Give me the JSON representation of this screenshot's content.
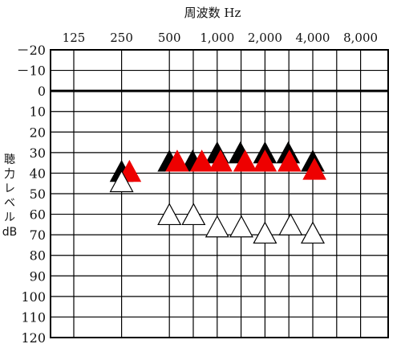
{
  "chart_data": {
    "type": "scatter",
    "title": "",
    "xlabel": "周波数 Hz",
    "ylabel": "聴力レベル dB",
    "ylabel_lines": [
      "聴",
      "力",
      "レ",
      "ベ",
      "ル",
      "dB"
    ],
    "x_ticks": [
      "125",
      "250",
      "500",
      "1,000",
      "2,000",
      "4,000",
      "8,000"
    ],
    "y_ticks": [
      "－20",
      "－10",
      "0",
      "10",
      "20",
      "30",
      "40",
      "50",
      "60",
      "70",
      "80",
      "90",
      "100",
      "110",
      "120"
    ],
    "y_values": [
      -20,
      -10,
      0,
      10,
      20,
      30,
      40,
      50,
      60,
      70,
      80,
      90,
      100,
      110,
      120
    ],
    "ylim": [
      -20,
      120
    ],
    "y_inverted": true,
    "x_scale": "log2 (octave)",
    "reference_line_db": 0,
    "grid": true,
    "legend": "none",
    "series": [
      {
        "marker": "triangle-filled",
        "color": "#000000",
        "points": [
          {
            "x": 250,
            "y": 40
          },
          {
            "x": 500,
            "y": 35
          },
          {
            "x": 700,
            "y": 35
          },
          {
            "x": 1000,
            "y": 31
          },
          {
            "x": 1400,
            "y": 31
          },
          {
            "x": 2000,
            "y": 31
          },
          {
            "x": 2800,
            "y": 31
          },
          {
            "x": 4000,
            "y": 35
          }
        ]
      },
      {
        "marker": "triangle-filled",
        "color": "#ee0000",
        "points": [
          {
            "x": 280,
            "y": 40
          },
          {
            "x": 560,
            "y": 35
          },
          {
            "x": 800,
            "y": 35
          },
          {
            "x": 1050,
            "y": 35
          },
          {
            "x": 1500,
            "y": 35
          },
          {
            "x": 2000,
            "y": 35
          },
          {
            "x": 2850,
            "y": 35
          },
          {
            "x": 4100,
            "y": 39
          }
        ]
      },
      {
        "marker": "triangle-open",
        "color": "#000000",
        "points": [
          {
            "x": 250,
            "y": 45
          },
          {
            "x": 500,
            "y": 61
          },
          {
            "x": 710,
            "y": 61
          },
          {
            "x": 1000,
            "y": 67
          },
          {
            "x": 1420,
            "y": 67
          },
          {
            "x": 2000,
            "y": 70
          },
          {
            "x": 2900,
            "y": 66
          },
          {
            "x": 4000,
            "y": 70
          }
        ]
      }
    ]
  }
}
